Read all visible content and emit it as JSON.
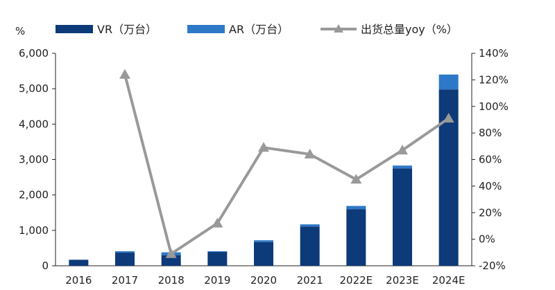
{
  "chart_data": {
    "type": "bar",
    "categories": [
      "2016",
      "2017",
      "2018",
      "2019",
      "2020",
      "2021",
      "2022E",
      "2023E",
      "2024E"
    ],
    "series": [
      {
        "name": "VR（万台）",
        "type": "bar",
        "stack": "shipments",
        "axis": "left",
        "color": "#0d3a78",
        "values": [
          170,
          370,
          300,
          390,
          670,
          1110,
          1600,
          2750,
          4980
        ]
      },
      {
        "name": "AR（万台）",
        "type": "bar",
        "stack": "shipments",
        "axis": "left",
        "color": "#2e78c8",
        "values": [
          0,
          40,
          80,
          20,
          50,
          60,
          90,
          80,
          420
        ]
      },
      {
        "name": "出货总量yoy（%）",
        "type": "line",
        "axis": "right",
        "color": "#999999",
        "marker": "triangle",
        "values": [
          null,
          124,
          -11,
          12,
          69,
          64,
          45,
          67,
          91
        ]
      }
    ],
    "ylabel_left": "%",
    "ylim_left": [
      0,
      6000
    ],
    "yticks_left": [
      "0",
      "1,000",
      "2,000",
      "3,000",
      "4,000",
      "5,000",
      "6,000"
    ],
    "ylim_right": [
      -20,
      140
    ],
    "yticks_right": [
      "-20%",
      "0%",
      "20%",
      "40%",
      "60%",
      "80%",
      "100%",
      "120%",
      "140%"
    ],
    "grid": false,
    "legend_position": "top"
  }
}
